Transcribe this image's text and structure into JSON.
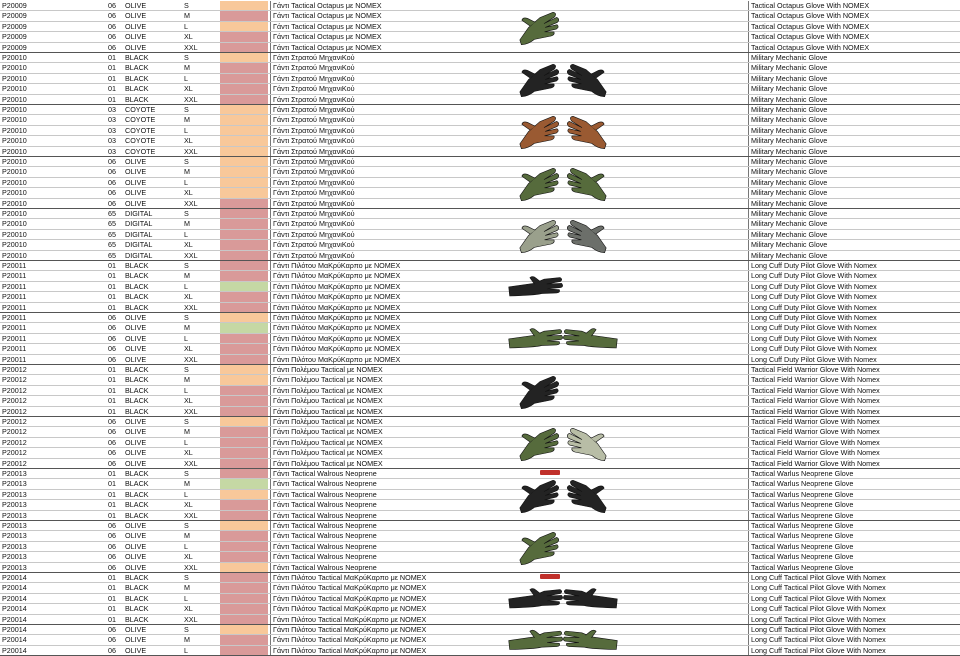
{
  "colors": {
    "peach": "#f8c89a",
    "pink": "#d99a99",
    "green": "#c5d8a4",
    "sticker": "#c0302a",
    "black_glove": "#232323",
    "olive_glove": "#566b3c",
    "coyote_glove": "#9a5a32",
    "digital_glove": "#9aa08c",
    "digital_grey_glove": "#6c6f6a",
    "stone_glove": "#b8bda6"
  },
  "rows": [
    {
      "code": "P20009",
      "col": "06",
      "cname": "OLIVE",
      "size": "S",
      "gr": "Γάντι Tactical Octapus με NOMEX",
      "en": "Tactical Octapus Glove With NOMEX",
      "sw": "peach"
    },
    {
      "code": "P20009",
      "col": "06",
      "cname": "OLIVE",
      "size": "M",
      "gr": "Γάντι Tactical Octapus με NOMEX",
      "en": "Tactical Octapus Glove With NOMEX",
      "sw": "pink"
    },
    {
      "code": "P20009",
      "col": "06",
      "cname": "OLIVE",
      "size": "L",
      "gr": "Γάντι Tactical Octapus με NOMEX",
      "en": "Tactical Octapus Glove With NOMEX",
      "sw": "peach"
    },
    {
      "code": "P20009",
      "col": "06",
      "cname": "OLIVE",
      "size": "XL",
      "gr": "Γάντι Tactical Octapus με NOMEX",
      "en": "Tactical Octapus Glove With NOMEX",
      "sw": "pink"
    },
    {
      "code": "P20009",
      "col": "06",
      "cname": "OLIVE",
      "size": "XXL",
      "gr": "Γάντι Tactical Octapus με NOMEX",
      "en": "Tactical Octapus Glove With NOMEX",
      "sw": "pink"
    },
    {
      "code": "P20010",
      "col": "01",
      "cname": "BLACK",
      "size": "S",
      "gr": "Γάντι Στρατού ΜηχανιΚού",
      "en": "Military Mechanic Glove",
      "sw": "peach"
    },
    {
      "code": "P20010",
      "col": "01",
      "cname": "BLACK",
      "size": "M",
      "gr": "Γάντι Στρατού ΜηχανιΚού",
      "en": "Military Mechanic Glove",
      "sw": "pink"
    },
    {
      "code": "P20010",
      "col": "01",
      "cname": "BLACK",
      "size": "L",
      "gr": "Γάντι Στρατού ΜηχανιΚού",
      "en": "Military Mechanic Glove",
      "sw": "pink"
    },
    {
      "code": "P20010",
      "col": "01",
      "cname": "BLACK",
      "size": "XL",
      "gr": "Γάντι Στρατού ΜηχανιΚού",
      "en": "Military Mechanic Glove",
      "sw": "pink"
    },
    {
      "code": "P20010",
      "col": "01",
      "cname": "BLACK",
      "size": "XXL",
      "gr": "Γάντι Στρατού ΜηχανιΚού",
      "en": "Military Mechanic Glove",
      "sw": "pink"
    },
    {
      "code": "P20010",
      "col": "03",
      "cname": "COYOTE",
      "size": "S",
      "gr": "Γάντι Στρατού ΜηχανιΚού",
      "en": "Military Mechanic Glove",
      "sw": "peach"
    },
    {
      "code": "P20010",
      "col": "03",
      "cname": "COYOTE",
      "size": "M",
      "gr": "Γάντι Στρατού ΜηχανιΚού",
      "en": "Military Mechanic Glove",
      "sw": "peach"
    },
    {
      "code": "P20010",
      "col": "03",
      "cname": "COYOTE",
      "size": "L",
      "gr": "Γάντι Στρατού ΜηχανιΚού",
      "en": "Military Mechanic Glove",
      "sw": "peach"
    },
    {
      "code": "P20010",
      "col": "03",
      "cname": "COYOTE",
      "size": "XL",
      "gr": "Γάντι Στρατού ΜηχανιΚού",
      "en": "Military Mechanic Glove",
      "sw": "peach"
    },
    {
      "code": "P20010",
      "col": "03",
      "cname": "COYOTE",
      "size": "XXL",
      "gr": "Γάντι Στρατού ΜηχανιΚού",
      "en": "Military Mechanic Glove",
      "sw": "peach"
    },
    {
      "code": "P20010",
      "col": "06",
      "cname": "OLIVE",
      "size": "S",
      "gr": "Γάντι Στρατού ΜηχανιΚού",
      "en": "Military Mechanic Glove",
      "sw": "peach"
    },
    {
      "code": "P20010",
      "col": "06",
      "cname": "OLIVE",
      "size": "M",
      "gr": "Γάντι Στρατού ΜηχανιΚού",
      "en": "Military Mechanic Glove",
      "sw": "peach"
    },
    {
      "code": "P20010",
      "col": "06",
      "cname": "OLIVE",
      "size": "L",
      "gr": "Γάντι Στρατού ΜηχανιΚού",
      "en": "Military Mechanic Glove",
      "sw": "peach"
    },
    {
      "code": "P20010",
      "col": "06",
      "cname": "OLIVE",
      "size": "XL",
      "gr": "Γάντι Στρατού ΜηχανιΚού",
      "en": "Military Mechanic Glove",
      "sw": "peach"
    },
    {
      "code": "P20010",
      "col": "06",
      "cname": "OLIVE",
      "size": "XXL",
      "gr": "Γάντι Στρατού ΜηχανιΚού",
      "en": "Military Mechanic Glove",
      "sw": "pink"
    },
    {
      "code": "P20010",
      "col": "65",
      "cname": "DIGITAL",
      "size": "S",
      "gr": "Γάντι Στρατού ΜηχανιΚού",
      "en": "Military Mechanic Glove",
      "sw": "pink"
    },
    {
      "code": "P20010",
      "col": "65",
      "cname": "DIGITAL",
      "size": "M",
      "gr": "Γάντι Στρατού ΜηχανιΚού",
      "en": "Military Mechanic Glove",
      "sw": "pink"
    },
    {
      "code": "P20010",
      "col": "65",
      "cname": "DIGITAL",
      "size": "L",
      "gr": "Γάντι Στρατού ΜηχανιΚού",
      "en": "Military Mechanic Glove",
      "sw": "pink"
    },
    {
      "code": "P20010",
      "col": "65",
      "cname": "DIGITAL",
      "size": "XL",
      "gr": "Γάντι Στρατού ΜηχανιΚού",
      "en": "Military Mechanic Glove",
      "sw": "pink"
    },
    {
      "code": "P20010",
      "col": "65",
      "cname": "DIGITAL",
      "size": "XXL",
      "gr": "Γάντι Στρατού ΜηχανιΚού",
      "en": "Military Mechanic Glove",
      "sw": "pink"
    },
    {
      "code": "P20011",
      "col": "01",
      "cname": "BLACK",
      "size": "S",
      "gr": "Γάντι Πιλότου ΜαΚρύΚαρπο με NOMEX",
      "en": "Long Cuff Duty Pilot Glove With Nomex",
      "sw": "pink"
    },
    {
      "code": "P20011",
      "col": "01",
      "cname": "BLACK",
      "size": "M",
      "gr": "Γάντι Πιλότου ΜαΚρύΚαρπο με NOMEX",
      "en": "Long Cuff Duty Pilot Glove With Nomex",
      "sw": "pink"
    },
    {
      "code": "P20011",
      "col": "01",
      "cname": "BLACK",
      "size": "L",
      "gr": "Γάντι Πιλότου ΜαΚρύΚαρπο με NOMEX",
      "en": "Long Cuff Duty Pilot Glove With Nomex",
      "sw": "green"
    },
    {
      "code": "P20011",
      "col": "01",
      "cname": "BLACK",
      "size": "XL",
      "gr": "Γάντι Πιλότου ΜαΚρύΚαρπο με NOMEX",
      "en": "Long Cuff Duty Pilot Glove With Nomex",
      "sw": "pink"
    },
    {
      "code": "P20011",
      "col": "01",
      "cname": "BLACK",
      "size": "XXL",
      "gr": "Γάντι Πιλότου ΜαΚρύΚαρπο με NOMEX",
      "en": "Long Cuff Duty Pilot Glove With Nomex",
      "sw": "pink"
    },
    {
      "code": "P20011",
      "col": "06",
      "cname": "OLIVE",
      "size": "S",
      "gr": "Γάντι Πιλότου ΜαΚρύΚαρπο με NOMEX",
      "en": "Long Cuff Duty Pilot Glove With Nomex",
      "sw": "peach"
    },
    {
      "code": "P20011",
      "col": "06",
      "cname": "OLIVE",
      "size": "M",
      "gr": "Γάντι Πιλότου ΜαΚρύΚαρπο με NOMEX",
      "en": "Long Cuff Duty Pilot Glove With Nomex",
      "sw": "green"
    },
    {
      "code": "P20011",
      "col": "06",
      "cname": "OLIVE",
      "size": "L",
      "gr": "Γάντι Πιλότου ΜαΚρύΚαρπο με NOMEX",
      "en": "Long Cuff Duty Pilot Glove With Nomex",
      "sw": "pink"
    },
    {
      "code": "P20011",
      "col": "06",
      "cname": "OLIVE",
      "size": "XL",
      "gr": "Γάντι Πιλότου ΜαΚρύΚαρπο με NOMEX",
      "en": "Long Cuff Duty Pilot Glove With Nomex",
      "sw": "pink"
    },
    {
      "code": "P20011",
      "col": "06",
      "cname": "OLIVE",
      "size": "XXL",
      "gr": "Γάντι Πιλότου ΜαΚρύΚαρπο με NOMEX",
      "en": "Long Cuff Duty Pilot Glove With Nomex",
      "sw": "pink"
    },
    {
      "code": "P20012",
      "col": "01",
      "cname": "BLACK",
      "size": "S",
      "gr": "Γάντι Πολέμου Tactical με NOMEX",
      "en": "Tactical Field Warrior Glove With Nomex",
      "sw": "peach"
    },
    {
      "code": "P20012",
      "col": "01",
      "cname": "BLACK",
      "size": "M",
      "gr": "Γάντι Πολέμου Tactical με NOMEX",
      "en": "Tactical Field Warrior Glove With Nomex",
      "sw": "peach"
    },
    {
      "code": "P20012",
      "col": "01",
      "cname": "BLACK",
      "size": "L",
      "gr": "Γάντι Πολέμου Tactical με NOMEX",
      "en": "Tactical Field Warrior Glove With Nomex",
      "sw": "pink"
    },
    {
      "code": "P20012",
      "col": "01",
      "cname": "BLACK",
      "size": "XL",
      "gr": "Γάντι Πολέμου Tactical με NOMEX",
      "en": "Tactical Field Warrior Glove With Nomex",
      "sw": "pink"
    },
    {
      "code": "P20012",
      "col": "01",
      "cname": "BLACK",
      "size": "XXL",
      "gr": "Γάντι Πολέμου Tactical με NOMEX",
      "en": "Tactical Field Warrior Glove With Nomex",
      "sw": "pink"
    },
    {
      "code": "P20012",
      "col": "06",
      "cname": "OLIVE",
      "size": "S",
      "gr": "Γάντι Πολέμου Tactical με NOMEX",
      "en": "Tactical Field Warrior Glove With Nomex",
      "sw": "peach"
    },
    {
      "code": "P20012",
      "col": "06",
      "cname": "OLIVE",
      "size": "M",
      "gr": "Γάντι Πολέμου Tactical με NOMEX",
      "en": "Tactical Field Warrior Glove With Nomex",
      "sw": "pink"
    },
    {
      "code": "P20012",
      "col": "06",
      "cname": "OLIVE",
      "size": "L",
      "gr": "Γάντι Πολέμου Tactical με NOMEX",
      "en": "Tactical Field Warrior Glove With Nomex",
      "sw": "pink"
    },
    {
      "code": "P20012",
      "col": "06",
      "cname": "OLIVE",
      "size": "XL",
      "gr": "Γάντι Πολέμου Tactical με NOMEX",
      "en": "Tactical Field Warrior Glove With Nomex",
      "sw": "pink"
    },
    {
      "code": "P20012",
      "col": "06",
      "cname": "OLIVE",
      "size": "XXL",
      "gr": "Γάντι Πολέμου Tactical με NOMEX",
      "en": "Tactical Field Warrior Glove With Nomex",
      "sw": "pink"
    },
    {
      "code": "P20013",
      "col": "01",
      "cname": "BLACK",
      "size": "S",
      "gr": "Γάντι Tactical Walrous Neoprene",
      "en": "Tactical Warlus Neoprene Glove",
      "sw": "pink"
    },
    {
      "code": "P20013",
      "col": "01",
      "cname": "BLACK",
      "size": "M",
      "gr": "Γάντι Tactical Walrous Neoprene",
      "en": "Tactical Warlus Neoprene Glove",
      "sw": "green"
    },
    {
      "code": "P20013",
      "col": "01",
      "cname": "BLACK",
      "size": "L",
      "gr": "Γάντι Tactical Walrous Neoprene",
      "en": "Tactical Warlus Neoprene Glove",
      "sw": "peach"
    },
    {
      "code": "P20013",
      "col": "01",
      "cname": "BLACK",
      "size": "XL",
      "gr": "Γάντι Tactical Walrous Neoprene",
      "en": "Tactical Warlus Neoprene Glove",
      "sw": "pink"
    },
    {
      "code": "P20013",
      "col": "01",
      "cname": "BLACK",
      "size": "XXL",
      "gr": "Γάντι Tactical Walrous Neoprene",
      "en": "Tactical Warlus Neoprene Glove",
      "sw": "pink"
    },
    {
      "code": "P20013",
      "col": "06",
      "cname": "OLIVE",
      "size": "S",
      "gr": "Γάντι Tactical Walrous Neoprene",
      "en": "Tactical Warlus Neoprene Glove",
      "sw": "peach"
    },
    {
      "code": "P20013",
      "col": "06",
      "cname": "OLIVE",
      "size": "M",
      "gr": "Γάντι Tactical Walrous Neoprene",
      "en": "Tactical Warlus Neoprene Glove",
      "sw": "pink"
    },
    {
      "code": "P20013",
      "col": "06",
      "cname": "OLIVE",
      "size": "L",
      "gr": "Γάντι Tactical Walrous Neoprene",
      "en": "Tactical Warlus Neoprene Glove",
      "sw": "pink"
    },
    {
      "code": "P20013",
      "col": "06",
      "cname": "OLIVE",
      "size": "XL",
      "gr": "Γάντι Tactical Walrous Neoprene",
      "en": "Tactical Warlus Neoprene Glove",
      "sw": "pink"
    },
    {
      "code": "P20013",
      "col": "06",
      "cname": "OLIVE",
      "size": "XXL",
      "gr": "Γάντι Tactical Walrous Neoprene",
      "en": "Tactical Warlus Neoprene Glove",
      "sw": "peach"
    },
    {
      "code": "P20014",
      "col": "01",
      "cname": "BLACK",
      "size": "S",
      "gr": "Γάντι Πιλότου Tactical ΜαΚρύΚαρπο με NOMEX",
      "en": "Long Cuff Tactical Pilot Glove With Nomex",
      "sw": "pink"
    },
    {
      "code": "P20014",
      "col": "01",
      "cname": "BLACK",
      "size": "M",
      "gr": "Γάντι Πιλότου Tactical ΜαΚρύΚαρπο με NOMEX",
      "en": "Long Cuff Tactical Pilot Glove With Nomex",
      "sw": "pink"
    },
    {
      "code": "P20014",
      "col": "01",
      "cname": "BLACK",
      "size": "L",
      "gr": "Γάντι Πιλότου Tactical ΜαΚρύΚαρπο με NOMEX",
      "en": "Long Cuff Tactical Pilot Glove With Nomex",
      "sw": "pink"
    },
    {
      "code": "P20014",
      "col": "01",
      "cname": "BLACK",
      "size": "XL",
      "gr": "Γάντι Πιλότου Tactical ΜαΚρύΚαρπο με NOMEX",
      "en": "Long Cuff Tactical Pilot Glove With Nomex",
      "sw": "pink"
    },
    {
      "code": "P20014",
      "col": "01",
      "cname": "BLACK",
      "size": "XXL",
      "gr": "Γάντι Πιλότου Tactical ΜαΚρύΚαρπο με NOMEX",
      "en": "Long Cuff Tactical Pilot Glove With Nomex",
      "sw": "pink"
    },
    {
      "code": "P20014",
      "col": "06",
      "cname": "OLIVE",
      "size": "S",
      "gr": "Γάντι Πιλότου Tactical ΜαΚρύΚαρπο με NOMEX",
      "en": "Long Cuff Tactical Pilot Glove With Nomex",
      "sw": "peach"
    },
    {
      "code": "P20014",
      "col": "06",
      "cname": "OLIVE",
      "size": "M",
      "gr": "Γάντι Πιλότου Tactical ΜαΚρύΚαρπο με NOMEX",
      "en": "Long Cuff Tactical Pilot Glove With Nomex",
      "sw": "pink"
    },
    {
      "code": "P20014",
      "col": "06",
      "cname": "OLIVE",
      "size": "L",
      "gr": "Γάντι Πιλότου Tactical ΜαΚρύΚαρπο με NOMEX",
      "en": "Long Cuff Tactical Pilot Glove With Nomex",
      "sw": "pink"
    }
  ],
  "images": [
    {
      "name": "octapus-olive-glove-photo",
      "kind": "mitt",
      "colors": [
        "olive_glove"
      ],
      "sticker": false
    },
    {
      "name": "mechanic-black-glove-photo",
      "kind": "mitt",
      "colors": [
        "black_glove",
        "black_glove"
      ],
      "sticker": false
    },
    {
      "name": "mechanic-coyote-glove-photo",
      "kind": "mitt",
      "colors": [
        "coyote_glove",
        "coyote_glove"
      ],
      "sticker": false
    },
    {
      "name": "mechanic-olive-glove-photo",
      "kind": "mitt",
      "colors": [
        "olive_glove",
        "olive_glove"
      ],
      "sticker": false
    },
    {
      "name": "mechanic-digital-glove-photo",
      "kind": "mitt",
      "colors": [
        "digital_glove",
        "digital_grey_glove"
      ],
      "sticker": false
    },
    {
      "name": "pilot-black-glove-photo",
      "kind": "cuff",
      "colors": [
        "black_glove"
      ],
      "sticker": false
    },
    {
      "name": "pilot-olive-glove-photo",
      "kind": "cuff",
      "colors": [
        "olive_glove",
        "olive_glove"
      ],
      "sticker": false
    },
    {
      "name": "warrior-black-glove-photo",
      "kind": "mitt",
      "colors": [
        "black_glove"
      ],
      "sticker": false
    },
    {
      "name": "warrior-olive-glove-photo",
      "kind": "mitt",
      "colors": [
        "olive_glove",
        "stone_glove"
      ],
      "sticker": false
    },
    {
      "name": "walrus-black-glove-photo",
      "kind": "mitt",
      "colors": [
        "black_glove",
        "black_glove"
      ],
      "sticker": true
    },
    {
      "name": "walrus-olive-glove-photo",
      "kind": "mitt",
      "colors": [
        "olive_glove"
      ],
      "sticker": false
    },
    {
      "name": "pilot-tactical-black-glove-photo",
      "kind": "cuff",
      "colors": [
        "black_glove",
        "black_glove"
      ],
      "sticker": true
    },
    {
      "name": "pilot-tactical-olive-glove-photo",
      "kind": "cuff",
      "colors": [
        "olive_glove",
        "olive_glove"
      ],
      "sticker": false
    }
  ]
}
